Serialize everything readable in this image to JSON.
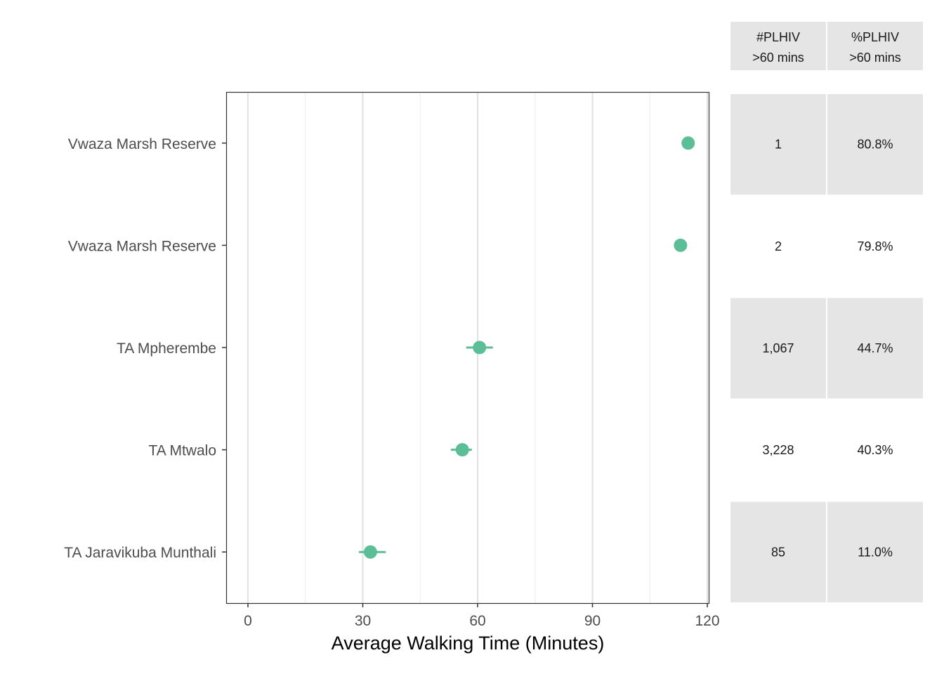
{
  "chart_data": {
    "type": "scatter",
    "xlabel": "Average Walking Time (Minutes)",
    "xlim": [
      0,
      120
    ],
    "x_ticks": [
      0,
      30,
      60,
      90,
      120
    ],
    "grid": true,
    "legend": "none",
    "point_color": "#5BBE96",
    "categories": [
      "Vwaza Marsh Reserve",
      "Vwaza Marsh Reserve",
      "TA Mpherembe",
      "TA Mtwalo",
      "TA Jaravikuba Munthali"
    ],
    "points": [
      {
        "category": "Vwaza Marsh Reserve",
        "x": 115.0,
        "x_low": 115.0,
        "x_high": 115.0
      },
      {
        "category": "Vwaza Marsh Reserve",
        "x": 113.0,
        "x_low": 113.0,
        "x_high": 113.0
      },
      {
        "category": "TA Mpherembe",
        "x": 60.5,
        "x_low": 57.0,
        "x_high": 64.0
      },
      {
        "category": "TA Mtwalo",
        "x": 56.0,
        "x_low": 53.0,
        "x_high": 58.5
      },
      {
        "category": "TA Jaravikuba Munthali",
        "x": 32.0,
        "x_low": 29.0,
        "x_high": 36.0
      }
    ]
  },
  "table": {
    "headers": [
      {
        "line1": "#PLHIV",
        "line2": ">60 mins"
      },
      {
        "line1": "%PLHIV",
        "line2": ">60 mins"
      }
    ],
    "rows": [
      {
        "count": "1",
        "percent": "80.8%",
        "shaded": true
      },
      {
        "count": "2",
        "percent": "79.8%",
        "shaded": false
      },
      {
        "count": "1,067",
        "percent": "44.7%",
        "shaded": true
      },
      {
        "count": "3,228",
        "percent": "40.3%",
        "shaded": false
      },
      {
        "count": "85",
        "percent": "11.0%",
        "shaded": true
      }
    ],
    "shade_color": "#E5E5E5"
  }
}
